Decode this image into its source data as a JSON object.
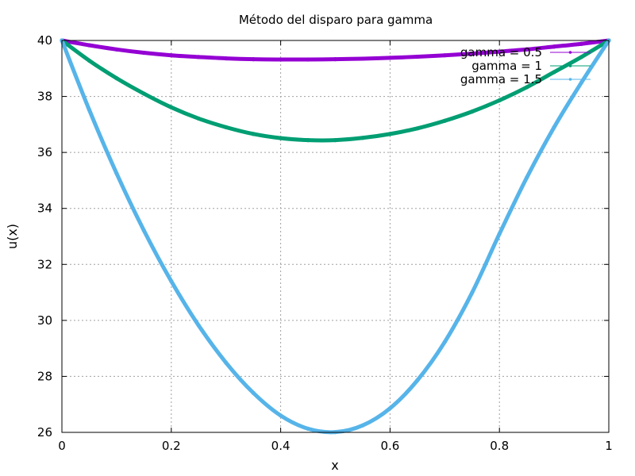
{
  "chart_data": {
    "type": "line",
    "title": "Método del disparo para gamma",
    "xlabel": "x",
    "ylabel": "u(x)",
    "xlim": [
      0,
      1
    ],
    "ylim": [
      26,
      40
    ],
    "grid": true,
    "legend_position": "top-right",
    "x_ticks": [
      "0",
      "0.2",
      "0.4",
      "0.6",
      "0.8",
      "1"
    ],
    "y_ticks": [
      "26",
      "28",
      "30",
      "32",
      "34",
      "36",
      "38",
      "40"
    ],
    "x": [
      0,
      0.05,
      0.1,
      0.15,
      0.2,
      0.25,
      0.3,
      0.35,
      0.4,
      0.45,
      0.5,
      0.55,
      0.6,
      0.65,
      0.7,
      0.75,
      0.8,
      0.85,
      0.9,
      0.95,
      1
    ],
    "series": [
      {
        "name": "gamma = 0.5",
        "color": "#9400d3",
        "values": [
          40.0,
          39.83,
          39.68,
          39.56,
          39.47,
          39.41,
          39.36,
          39.33,
          39.32,
          39.32,
          39.33,
          39.35,
          39.38,
          39.42,
          39.47,
          39.53,
          39.6,
          39.68,
          39.78,
          39.88,
          40.0
        ]
      },
      {
        "name": "gamma = 1",
        "color": "#009e73",
        "values": [
          40.0,
          39.28,
          38.65,
          38.1,
          37.61,
          37.21,
          36.9,
          36.66,
          36.51,
          36.44,
          36.44,
          36.52,
          36.66,
          36.86,
          37.13,
          37.46,
          37.86,
          38.33,
          38.87,
          39.41,
          40.0
        ]
      },
      {
        "name": "gamma = 1.5",
        "color": "#56b4e9",
        "values": [
          40.0,
          37.52,
          35.25,
          33.21,
          31.4,
          29.82,
          28.49,
          27.41,
          26.6,
          26.13,
          26.01,
          26.25,
          26.86,
          27.86,
          29.23,
          30.99,
          33.09,
          35.1,
          36.9,
          38.5,
          40.0
        ]
      }
    ]
  }
}
